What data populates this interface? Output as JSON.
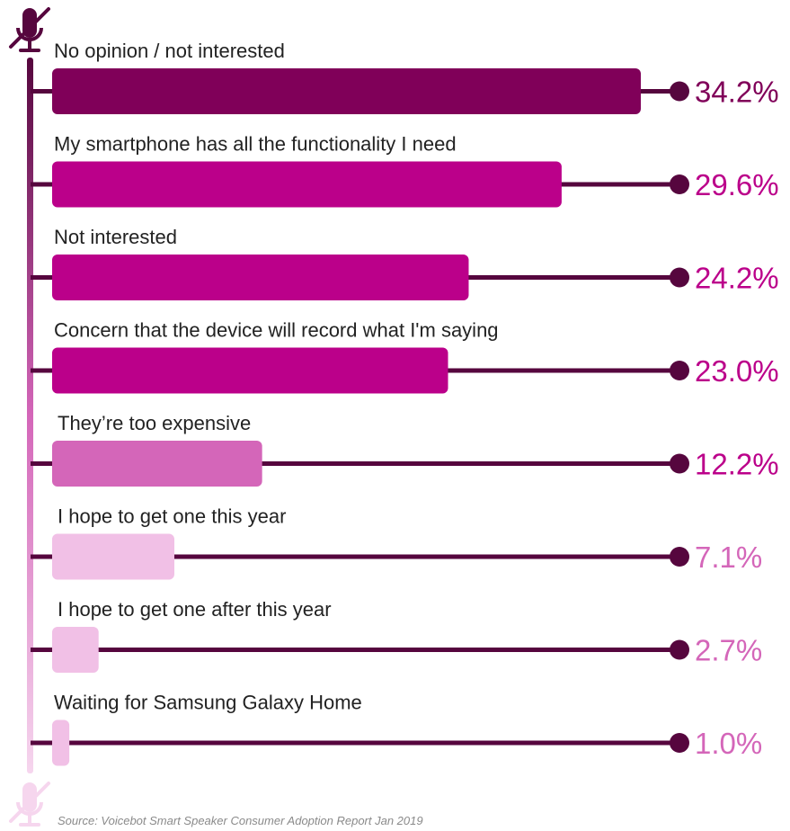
{
  "chart_data": {
    "type": "bar",
    "orientation": "horizontal",
    "categories": [
      "No opinion / not interested",
      "My smartphone has all the functionality I need",
      "Not interested",
      "Concern that the device will record what I'm saying",
      "They’re too expensive",
      "I hope to get one this year",
      "I hope to get one after this year",
      "Waiting for Samsung Galaxy Home"
    ],
    "values": [
      34.2,
      29.6,
      24.2,
      23.0,
      12.2,
      7.1,
      2.7,
      1.0
    ],
    "value_labels": [
      "34.2%",
      "29.6%",
      "24.2%",
      "23.0%",
      "12.2%",
      "7.1%",
      "2.7%",
      "1.0%"
    ],
    "bar_colors": [
      "#800059",
      "#bb008a",
      "#bb008a",
      "#bb008a",
      "#d466b9",
      "#f1c0e6",
      "#f1c0e6",
      "#f1c0e6"
    ],
    "value_colors": [
      "#800059",
      "#bb008a",
      "#bb008a",
      "#bb008a",
      "#bb008a",
      "#d466b9",
      "#d466b9",
      "#d466b9"
    ],
    "line_color": "#56063e",
    "xlim": [
      0,
      34.2
    ],
    "grid": false,
    "legend": "none"
  },
  "source": "Source: Voicebot Smart Speaker Consumer Adoption Report Jan 2019",
  "icons": [
    "microphone-icon",
    "microphone-icon"
  ]
}
